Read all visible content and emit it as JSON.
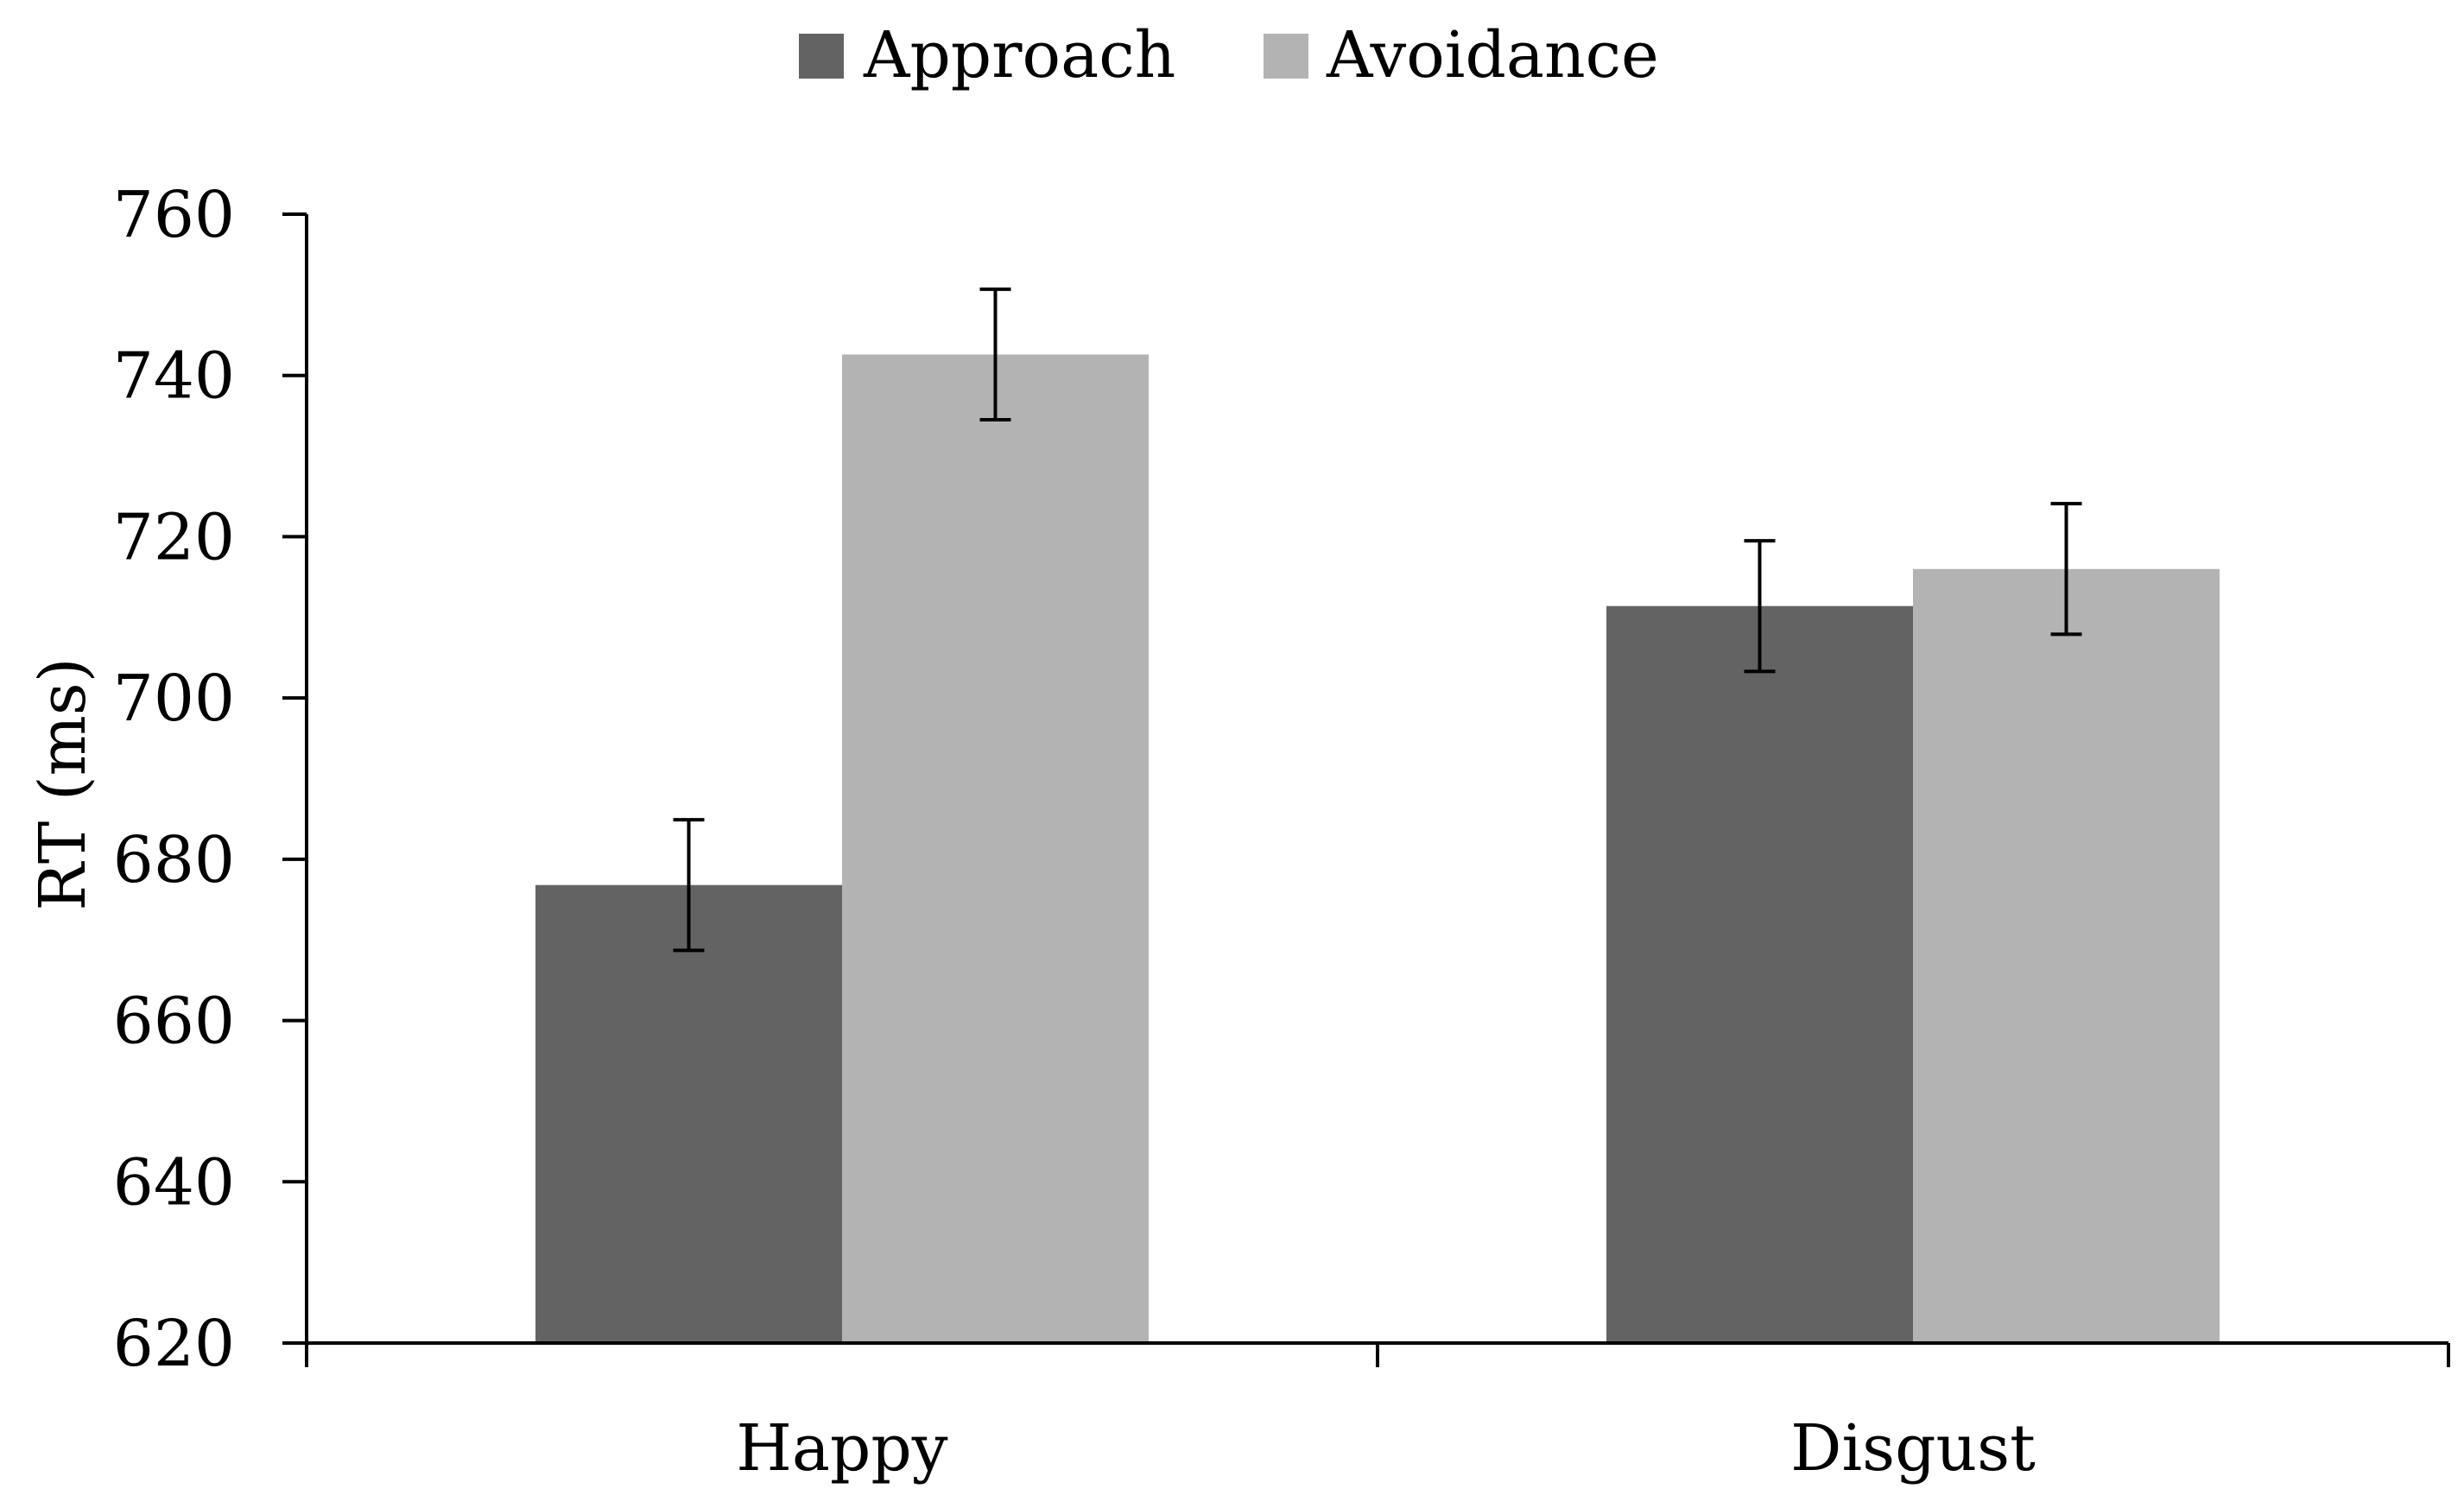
{
  "chart_data": {
    "type": "bar",
    "title": "",
    "xlabel": "",
    "ylabel": "RT (ms)",
    "ylim": [
      620,
      760
    ],
    "yticks": [
      620,
      640,
      660,
      680,
      700,
      720,
      740,
      760
    ],
    "ytick_labels": [
      "620",
      "640",
      "660",
      "680",
      "700",
      "720",
      "740",
      "760"
    ],
    "categories": [
      "Happy",
      "Disgust"
    ],
    "series": [
      {
        "name": "Approach",
        "color": "#636363",
        "values": [
          676.8,
          711.4
        ],
        "errors": [
          8.1,
          8.1
        ]
      },
      {
        "name": "Avoidance",
        "color": "#b3b3b3",
        "values": [
          742.6,
          716.0
        ],
        "errors": [
          8.1,
          8.1
        ]
      }
    ],
    "legend": {
      "position": "top-center",
      "entries": [
        "Approach",
        "Avoidance"
      ]
    },
    "grid": false,
    "error_bars": true
  }
}
